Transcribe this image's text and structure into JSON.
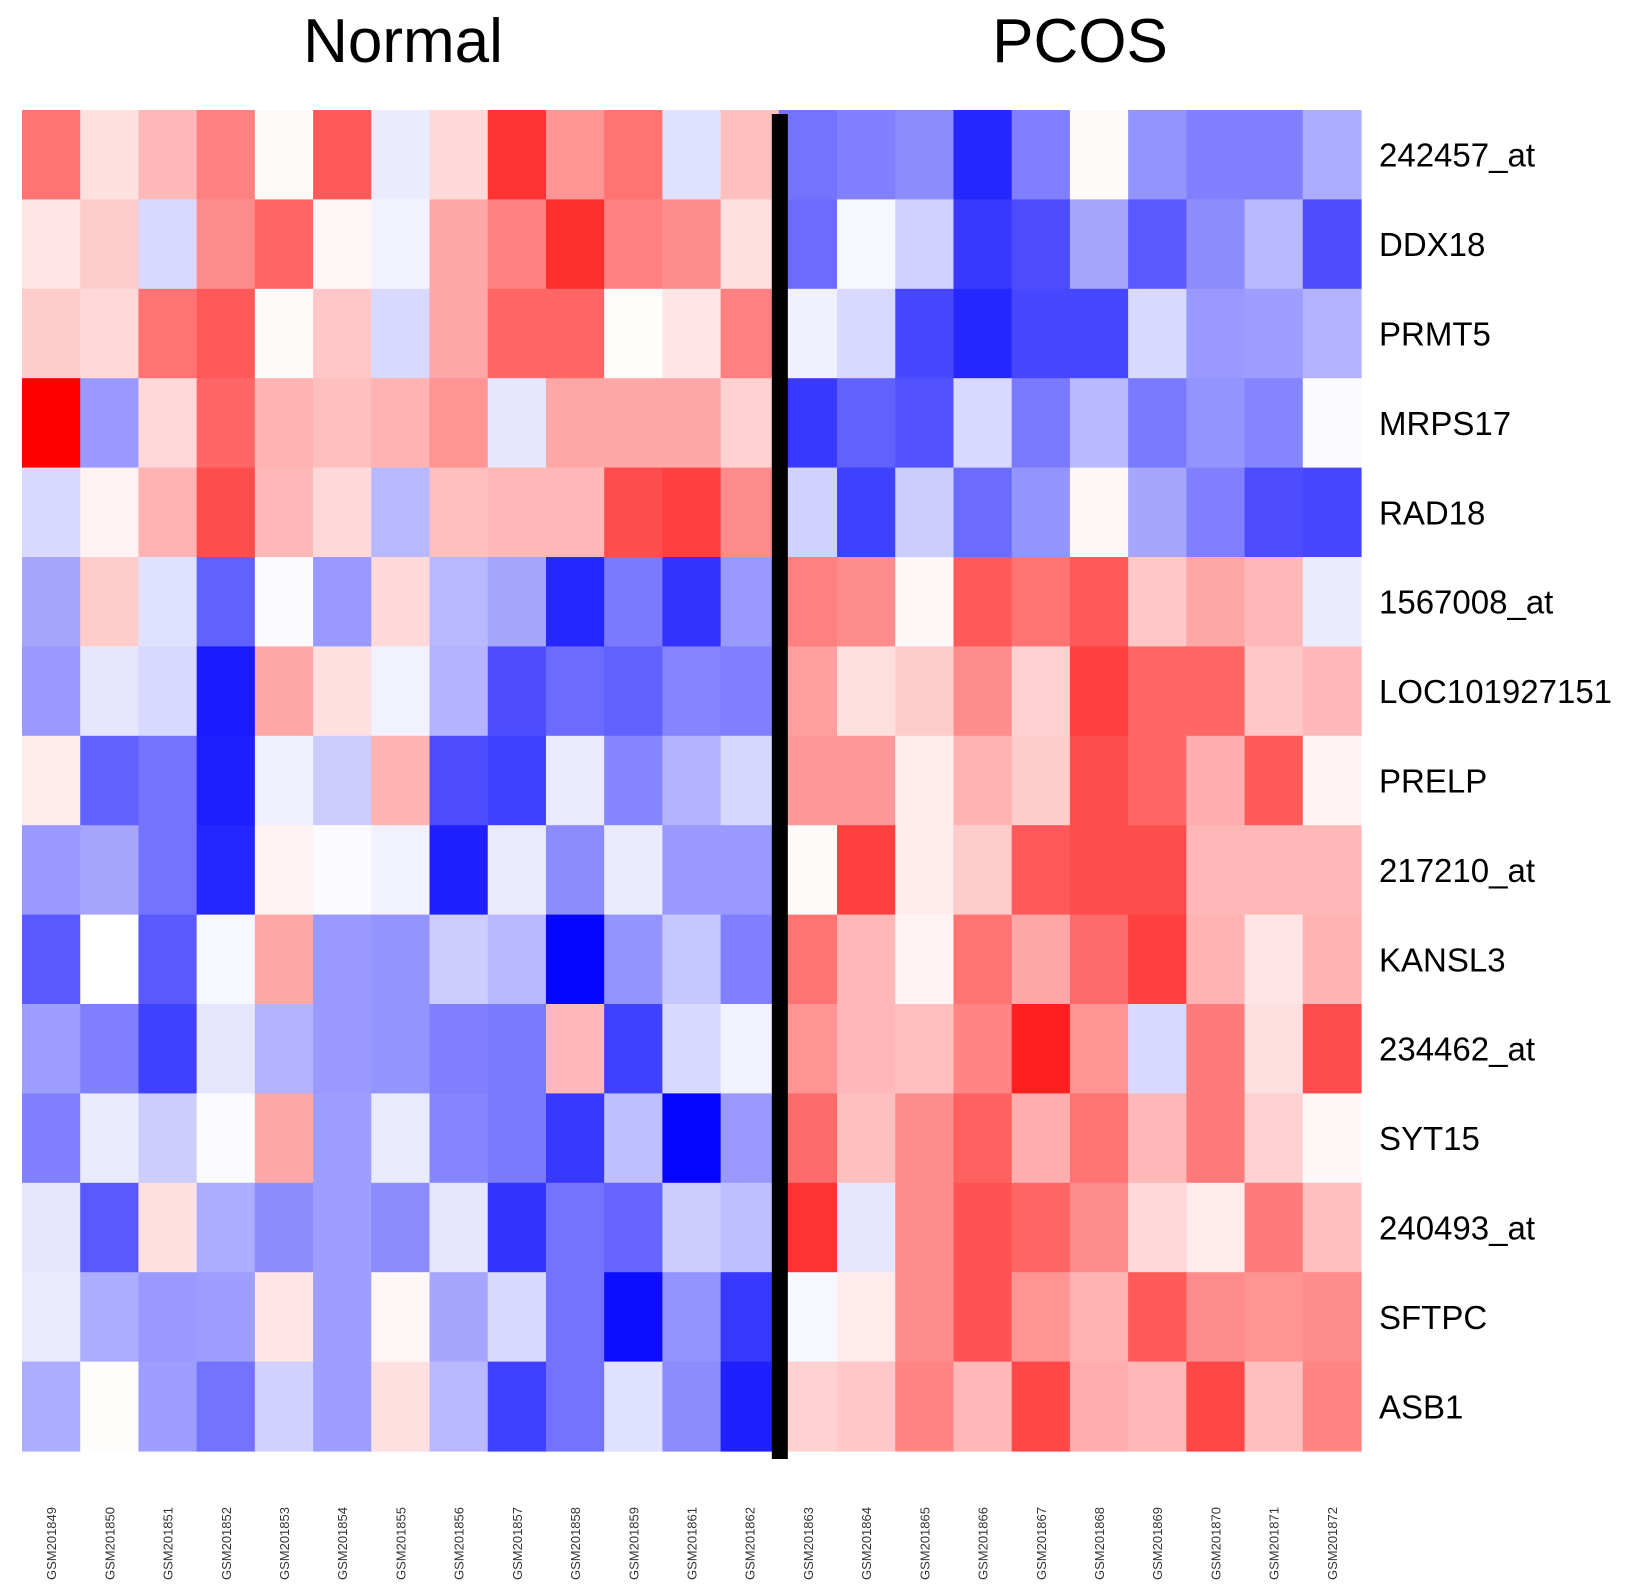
{
  "chart_data": {
    "type": "heatmap",
    "title": "",
    "groups": [
      {
        "name": "Normal",
        "count": 13
      },
      {
        "name": "PCOS",
        "count": 10
      }
    ],
    "columns": [
      "GSM201849",
      "GSM201850",
      "GSM201851",
      "GSM201852",
      "GSM201853",
      "GSM201854",
      "GSM201855",
      "GSM201856",
      "GSM201857",
      "GSM201858",
      "GSM201859",
      "GSM201861",
      "GSM201862",
      "GSM201863",
      "GSM201864",
      "GSM201865",
      "GSM201866",
      "GSM201867",
      "GSM201868",
      "GSM201869",
      "GSM201870",
      "GSM201871",
      "GSM201872"
    ],
    "rows": [
      "242457_at",
      "DDX18",
      "PRMT5",
      "MRPS17",
      "RAD18",
      "1567008_at",
      "LOC101927151",
      "PRELP",
      "217210_at",
      "KANSL3",
      "234462_at",
      "SYT15",
      "240493_at",
      "SFTPC",
      "ASB1"
    ],
    "value_range": [
      -1,
      1
    ],
    "color_scale": {
      "low": "#0000ff",
      "mid": "#ffffff",
      "high": "#ff0000"
    },
    "values": [
      [
        0.55,
        0.12,
        0.28,
        0.5,
        0.02,
        0.65,
        -0.08,
        0.15,
        0.8,
        0.42,
        0.55,
        -0.12,
        0.25,
        -0.55,
        -0.5,
        -0.45,
        -0.85,
        -0.5,
        0.02,
        -0.42,
        -0.5,
        -0.5,
        -0.32
      ],
      [
        0.1,
        0.2,
        -0.15,
        0.45,
        0.6,
        0.03,
        -0.05,
        0.35,
        0.5,
        0.82,
        0.5,
        0.45,
        0.12,
        -0.58,
        -0.03,
        -0.18,
        -0.78,
        -0.7,
        -0.35,
        -0.65,
        -0.45,
        -0.28,
        -0.7
      ],
      [
        0.2,
        0.15,
        0.55,
        0.65,
        0.02,
        0.22,
        -0.15,
        0.35,
        0.6,
        0.6,
        0.01,
        0.1,
        0.5,
        -0.06,
        -0.15,
        -0.72,
        -0.85,
        -0.72,
        -0.72,
        -0.15,
        -0.4,
        -0.38,
        -0.3
      ],
      [
        1.0,
        -0.4,
        0.15,
        0.6,
        0.3,
        0.25,
        0.3,
        0.42,
        -0.1,
        0.35,
        0.35,
        0.35,
        0.18,
        -0.78,
        -0.62,
        -0.68,
        -0.15,
        -0.52,
        -0.28,
        -0.52,
        -0.42,
        -0.48,
        -0.02
      ],
      [
        -0.15,
        0.05,
        0.3,
        0.7,
        0.28,
        0.15,
        -0.28,
        0.25,
        0.28,
        0.28,
        0.7,
        0.75,
        0.45,
        -0.18,
        -0.75,
        -0.2,
        -0.58,
        -0.42,
        0.03,
        -0.35,
        -0.5,
        -0.7,
        -0.72
      ],
      [
        -0.35,
        0.2,
        -0.12,
        -0.62,
        -0.02,
        -0.4,
        0.15,
        -0.28,
        -0.35,
        -0.85,
        -0.52,
        -0.8,
        -0.4,
        0.5,
        0.45,
        0.03,
        0.65,
        0.55,
        0.65,
        0.22,
        0.35,
        0.28,
        -0.08
      ],
      [
        -0.4,
        -0.1,
        -0.15,
        -0.9,
        0.35,
        0.12,
        -0.05,
        -0.3,
        -0.7,
        -0.58,
        -0.62,
        -0.48,
        -0.5,
        0.38,
        0.12,
        0.2,
        0.45,
        0.18,
        0.75,
        0.6,
        0.6,
        0.22,
        0.28
      ],
      [
        0.08,
        -0.62,
        -0.55,
        -0.88,
        -0.06,
        -0.2,
        0.3,
        -0.7,
        -0.75,
        -0.08,
        -0.48,
        -0.3,
        -0.16,
        0.4,
        0.4,
        0.08,
        0.3,
        0.2,
        0.7,
        0.6,
        0.32,
        0.65,
        0.05
      ],
      [
        -0.4,
        -0.35,
        -0.55,
        -0.85,
        0.05,
        -0.02,
        -0.05,
        -0.88,
        -0.08,
        -0.45,
        -0.08,
        -0.4,
        -0.4,
        0.02,
        0.75,
        0.08,
        0.2,
        0.65,
        0.7,
        0.7,
        0.28,
        0.28,
        0.28
      ],
      [
        -0.65,
        0.0,
        -0.65,
        -0.03,
        0.35,
        -0.4,
        -0.42,
        -0.2,
        -0.28,
        -0.98,
        -0.42,
        -0.22,
        -0.5,
        0.55,
        0.28,
        0.05,
        0.55,
        0.35,
        0.58,
        0.75,
        0.3,
        0.1,
        0.3
      ],
      [
        -0.38,
        -0.5,
        -0.75,
        -0.1,
        -0.3,
        -0.4,
        -0.42,
        -0.5,
        -0.52,
        0.28,
        -0.75,
        -0.15,
        -0.05,
        0.42,
        0.28,
        0.25,
        0.48,
        0.88,
        0.42,
        -0.15,
        0.52,
        0.12,
        0.7
      ],
      [
        -0.5,
        -0.08,
        -0.2,
        -0.02,
        0.35,
        -0.38,
        -0.08,
        -0.48,
        -0.52,
        -0.78,
        -0.25,
        -0.98,
        -0.4,
        0.58,
        0.25,
        0.45,
        0.62,
        0.32,
        0.55,
        0.28,
        0.52,
        0.18,
        0.03
      ],
      [
        -0.1,
        -0.65,
        0.12,
        -0.32,
        -0.45,
        -0.38,
        -0.45,
        -0.1,
        -0.8,
        -0.55,
        -0.6,
        -0.2,
        -0.25,
        0.8,
        -0.1,
        0.45,
        0.68,
        0.6,
        0.45,
        0.15,
        0.08,
        0.52,
        0.25
      ],
      [
        -0.08,
        -0.32,
        -0.4,
        -0.38,
        0.1,
        -0.38,
        0.03,
        -0.35,
        -0.15,
        -0.55,
        -0.95,
        -0.42,
        -0.78,
        -0.03,
        0.08,
        0.45,
        0.68,
        0.42,
        0.3,
        0.65,
        0.45,
        0.42,
        0.45
      ],
      [
        -0.32,
        0.01,
        -0.38,
        -0.55,
        -0.18,
        -0.38,
        0.12,
        -0.28,
        -0.75,
        -0.55,
        -0.12,
        -0.45,
        -0.88,
        0.18,
        0.22,
        0.48,
        0.28,
        0.72,
        0.32,
        0.28,
        0.72,
        0.25,
        0.48
      ]
    ]
  }
}
